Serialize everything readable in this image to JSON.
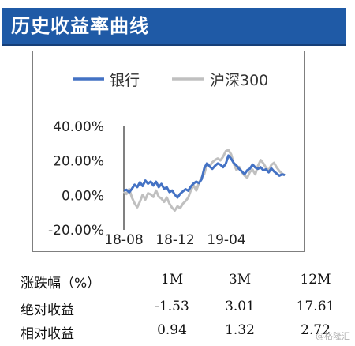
{
  "header": {
    "title": "历史收益率曲线"
  },
  "chart_data": {
    "type": "line",
    "x_ticks": [
      "18-08",
      "18-12",
      "19-04"
    ],
    "y_ticks": [
      "40.00%",
      "20.00%",
      "0.00%",
      "-20.00%"
    ],
    "ylim": [
      -20,
      40
    ],
    "x_range": [
      0,
      12
    ],
    "series": [
      {
        "name": "银行",
        "color": "#4472c4",
        "points": [
          [
            0,
            2.8
          ],
          [
            0.2,
            3.2
          ],
          [
            0.4,
            1.8
          ],
          [
            0.6,
            3.8
          ],
          [
            0.8,
            6.2
          ],
          [
            1.0,
            4.8
          ],
          [
            1.2,
            7.6
          ],
          [
            1.4,
            5.4
          ],
          [
            1.6,
            8.6
          ],
          [
            1.8,
            6.8
          ],
          [
            2.0,
            8.0
          ],
          [
            2.2,
            5.7
          ],
          [
            2.4,
            7.9
          ],
          [
            2.6,
            4.8
          ],
          [
            2.8,
            6.6
          ],
          [
            3.0,
            3.8
          ],
          [
            3.2,
            4.7
          ],
          [
            3.4,
            1.9
          ],
          [
            3.6,
            2.8
          ],
          [
            3.8,
            0.4
          ],
          [
            4.0,
            -1.2
          ],
          [
            4.2,
            0.9
          ],
          [
            4.4,
            2.3
          ],
          [
            4.6,
            3.6
          ],
          [
            4.8,
            2.7
          ],
          [
            5.0,
            5.2
          ],
          [
            5.2,
            6.9
          ],
          [
            5.4,
            8.0
          ],
          [
            5.6,
            7.1
          ],
          [
            5.8,
            9.4
          ],
          [
            6.0,
            15.8
          ],
          [
            6.2,
            18.6
          ],
          [
            6.4,
            16.7
          ],
          [
            6.6,
            15.4
          ],
          [
            6.8,
            17.2
          ],
          [
            7.0,
            18.5
          ],
          [
            7.2,
            17.8
          ],
          [
            7.4,
            16.3
          ],
          [
            7.6,
            18.4
          ],
          [
            7.8,
            23.1
          ],
          [
            8.0,
            21.2
          ],
          [
            8.2,
            18.7
          ],
          [
            8.4,
            17.3
          ],
          [
            8.6,
            15.3
          ],
          [
            8.8,
            13.9
          ],
          [
            9.0,
            12.3
          ],
          [
            9.2,
            14.6
          ],
          [
            9.4,
            15.5
          ],
          [
            9.6,
            17.9
          ],
          [
            9.8,
            16.2
          ],
          [
            10.0,
            15.4
          ],
          [
            10.2,
            16.3
          ],
          [
            10.4,
            14.6
          ],
          [
            10.6,
            15.1
          ],
          [
            10.8,
            13.4
          ],
          [
            11.0,
            15.7
          ],
          [
            11.2,
            13.9
          ],
          [
            11.4,
            12.6
          ],
          [
            11.6,
            11.4
          ],
          [
            11.8,
            12.2
          ],
          [
            12.0,
            11.8
          ]
        ]
      },
      {
        "name": "沪深300",
        "color": "#c0c0c0",
        "points": [
          [
            0,
            2.2
          ],
          [
            0.2,
            0.8
          ],
          [
            0.4,
            3.6
          ],
          [
            0.6,
            -1.2
          ],
          [
            0.8,
            -4.6
          ],
          [
            1.0,
            -6.9
          ],
          [
            1.2,
            -3.6
          ],
          [
            1.4,
            0.4
          ],
          [
            1.6,
            -2.4
          ],
          [
            1.8,
            1.2
          ],
          [
            2.0,
            0.6
          ],
          [
            2.2,
            -0.9
          ],
          [
            2.4,
            2.8
          ],
          [
            2.6,
            -0.8
          ],
          [
            2.8,
            -1.8
          ],
          [
            3.0,
            -3.8
          ],
          [
            3.2,
            -1.2
          ],
          [
            3.4,
            -4.8
          ],
          [
            3.6,
            -7.2
          ],
          [
            3.8,
            -8.8
          ],
          [
            4.0,
            -6.3
          ],
          [
            4.2,
            -7.4
          ],
          [
            4.4,
            -4.8
          ],
          [
            4.6,
            -3.3
          ],
          [
            4.8,
            -1.3
          ],
          [
            5.0,
            3.1
          ],
          [
            5.2,
            5.8
          ],
          [
            5.4,
            2.8
          ],
          [
            5.6,
            7.1
          ],
          [
            5.8,
            10.3
          ],
          [
            6.0,
            12.5
          ],
          [
            6.2,
            18.4
          ],
          [
            6.4,
            17.0
          ],
          [
            6.6,
            19.2
          ],
          [
            6.8,
            20.5
          ],
          [
            7.0,
            21.4
          ],
          [
            7.2,
            20.3
          ],
          [
            7.4,
            22.4
          ],
          [
            7.6,
            25.6
          ],
          [
            7.8,
            26.3
          ],
          [
            8.0,
            23.8
          ],
          [
            8.2,
            18.2
          ],
          [
            8.4,
            14.7
          ],
          [
            8.6,
            16.5
          ],
          [
            8.8,
            13.4
          ],
          [
            9.0,
            11.5
          ],
          [
            9.2,
            10.2
          ],
          [
            9.4,
            13.6
          ],
          [
            9.6,
            14.9
          ],
          [
            9.8,
            12.2
          ],
          [
            10.0,
            17.1
          ],
          [
            10.2,
            20.5
          ],
          [
            10.4,
            18.6
          ],
          [
            10.6,
            16.0
          ],
          [
            10.8,
            14.4
          ],
          [
            11.0,
            17.7
          ],
          [
            11.2,
            18.9
          ],
          [
            11.4,
            16.2
          ],
          [
            11.6,
            14.1
          ],
          [
            11.8,
            12.6
          ],
          [
            12.0,
            11.6
          ]
        ]
      }
    ]
  },
  "table": {
    "headers": [
      "涨跌幅（%）",
      "1M",
      "3M",
      "12M"
    ],
    "rows": [
      [
        "绝对收益",
        "-1.53",
        "3.01",
        "17.61"
      ],
      [
        "相对收益",
        "0.94",
        "1.32",
        "2.72"
      ]
    ]
  },
  "watermark": "@格隆汇"
}
